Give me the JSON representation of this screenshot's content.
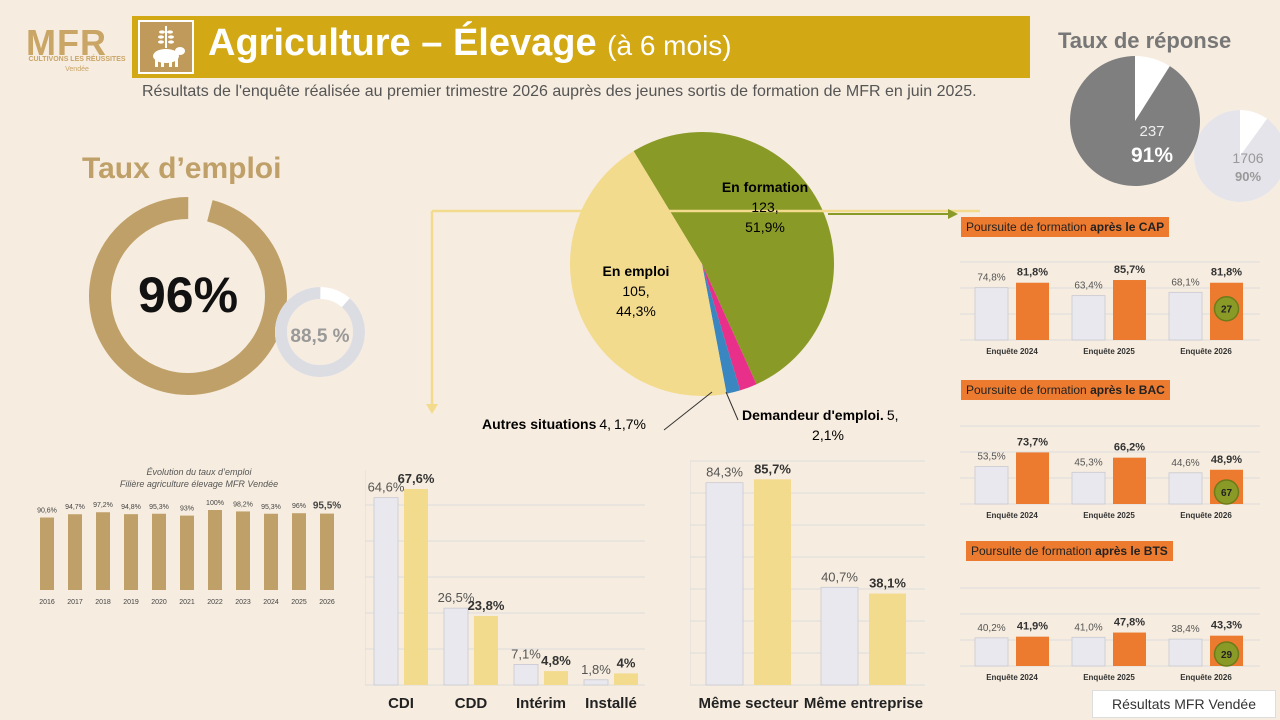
{
  "header": {
    "logo_text": "MFR",
    "logo_tagline": "CULTIVONS LES RÉUSSITES",
    "logo_region": "Vendée",
    "title": "Agriculture – Élevage",
    "title_suffix": "(à 6 mois)",
    "subtitle": "Résultats de l'enquête réalisée au premier trimestre 2026 auprès des jeunes sortis de formation de MFR en juin 2025.",
    "icon": "cow-and-wheat-icon"
  },
  "taux_emploi": {
    "heading": "Taux d’emploi",
    "value": "96%",
    "value_fraction": 0.96,
    "previous": "88,5 %",
    "previous_fraction": 0.885
  },
  "taux_reponse": {
    "heading": "Taux de réponse",
    "mfr_count": "237",
    "mfr_pct": "91%",
    "mfr_fraction": 0.91,
    "all_count": "1706",
    "all_pct": "90%",
    "all_fraction": 0.9
  },
  "colors": {
    "gold": "#bfa068",
    "banner": "#d2a815",
    "olive": "#8a9a26",
    "cream": "#f3db8e",
    "pink": "#e8308a",
    "blue": "#3a86c0",
    "orange": "#ec7b2f",
    "grey_bar": "#e9e8ee"
  },
  "chart_data": [
    {
      "type": "pie",
      "labels": [
        "En formation",
        "En emploi",
        "Autres situations",
        "Demandeur d'emploi."
      ],
      "values": [
        123,
        105,
        4,
        5
      ],
      "percent_labels": [
        "51,9%",
        "44,3%",
        "1,7%",
        "2,1%"
      ],
      "count_labels": [
        "123,",
        "105,",
        "4,",
        "5,"
      ]
    },
    {
      "type": "bar",
      "title": "Évolution du taux d’emploi",
      "subtitle": "Filière agriculture élevage MFR Vendée",
      "categories": [
        "2016",
        "2017",
        "2018",
        "2019",
        "2020",
        "2021",
        "2022",
        "2023",
        "2024",
        "2025",
        "2026"
      ],
      "values": [
        90.6,
        94.7,
        97.2,
        94.8,
        95.3,
        93,
        100,
        98.2,
        95.3,
        96,
        95.5
      ],
      "labels": [
        "90,6%",
        "94,7%",
        "97,2%",
        "94,8%",
        "95,3%",
        "93%",
        "100%",
        "98,2%",
        "95,3%",
        "96%",
        "95,5%"
      ],
      "ylim": [
        0,
        100
      ]
    },
    {
      "type": "bar",
      "categories": [
        "CDI",
        "CDD",
        "Intérim",
        "Installé"
      ],
      "series": [
        {
          "values": [
            64.6,
            26.5,
            7.1,
            1.8
          ],
          "labels": [
            "64,6%",
            "26,5%",
            "7,1%",
            "1,8%"
          ]
        },
        {
          "values": [
            67.6,
            23.8,
            4.8,
            4
          ],
          "labels": [
            "67,6%",
            "23,8%",
            "4,8%",
            "4%"
          ]
        }
      ],
      "grid": true
    },
    {
      "type": "bar",
      "categories": [
        "Même secteur",
        "Même entreprise"
      ],
      "series": [
        {
          "values": [
            84.3,
            40.7
          ],
          "labels": [
            "84,3%",
            "40,7%"
          ]
        },
        {
          "values": [
            85.7,
            38.1
          ],
          "labels": [
            "85,7%",
            "38,1%"
          ]
        }
      ],
      "grid": true
    },
    {
      "type": "bar",
      "title_prefix": "Poursuite de formation ",
      "title_bold": "après le CAP",
      "categories": [
        "Enquête 2024",
        "Enquête 2025",
        "Enquête 2026"
      ],
      "series": [
        {
          "values": [
            74.8,
            63.4,
            68.1
          ],
          "labels": [
            "74,8%",
            "63,4%",
            "68,1%"
          ]
        },
        {
          "values": [
            81.8,
            85.7,
            81.8
          ],
          "labels": [
            "81,8%",
            "85,7%",
            "81,8%"
          ]
        }
      ],
      "badge": "27"
    },
    {
      "type": "bar",
      "title_prefix": "Poursuite de formation ",
      "title_bold": "après le BAC",
      "categories": [
        "Enquête 2024",
        "Enquête 2025",
        "Enquête 2026"
      ],
      "series": [
        {
          "values": [
            53.5,
            45.3,
            44.6
          ],
          "labels": [
            "53,5%",
            "45,3%",
            "44,6%"
          ]
        },
        {
          "values": [
            73.7,
            66.2,
            48.9
          ],
          "labels": [
            "73,7%",
            "66,2%",
            "48,9%"
          ]
        }
      ],
      "badge": "67"
    },
    {
      "type": "bar",
      "title_prefix": "Poursuite de formation ",
      "title_bold": "après le BTS",
      "categories": [
        "Enquête 2024",
        "Enquête 2025",
        "Enquête 2026"
      ],
      "series": [
        {
          "values": [
            40.2,
            41.0,
            38.4
          ],
          "labels": [
            "40,2%",
            "41,0%",
            "38,4%"
          ]
        },
        {
          "values": [
            41.9,
            47.8,
            43.3
          ],
          "labels": [
            "41,9%",
            "47,8%",
            "43,3%"
          ]
        }
      ],
      "badge": "29"
    }
  ],
  "footer": "Résultats MFR Vendée"
}
